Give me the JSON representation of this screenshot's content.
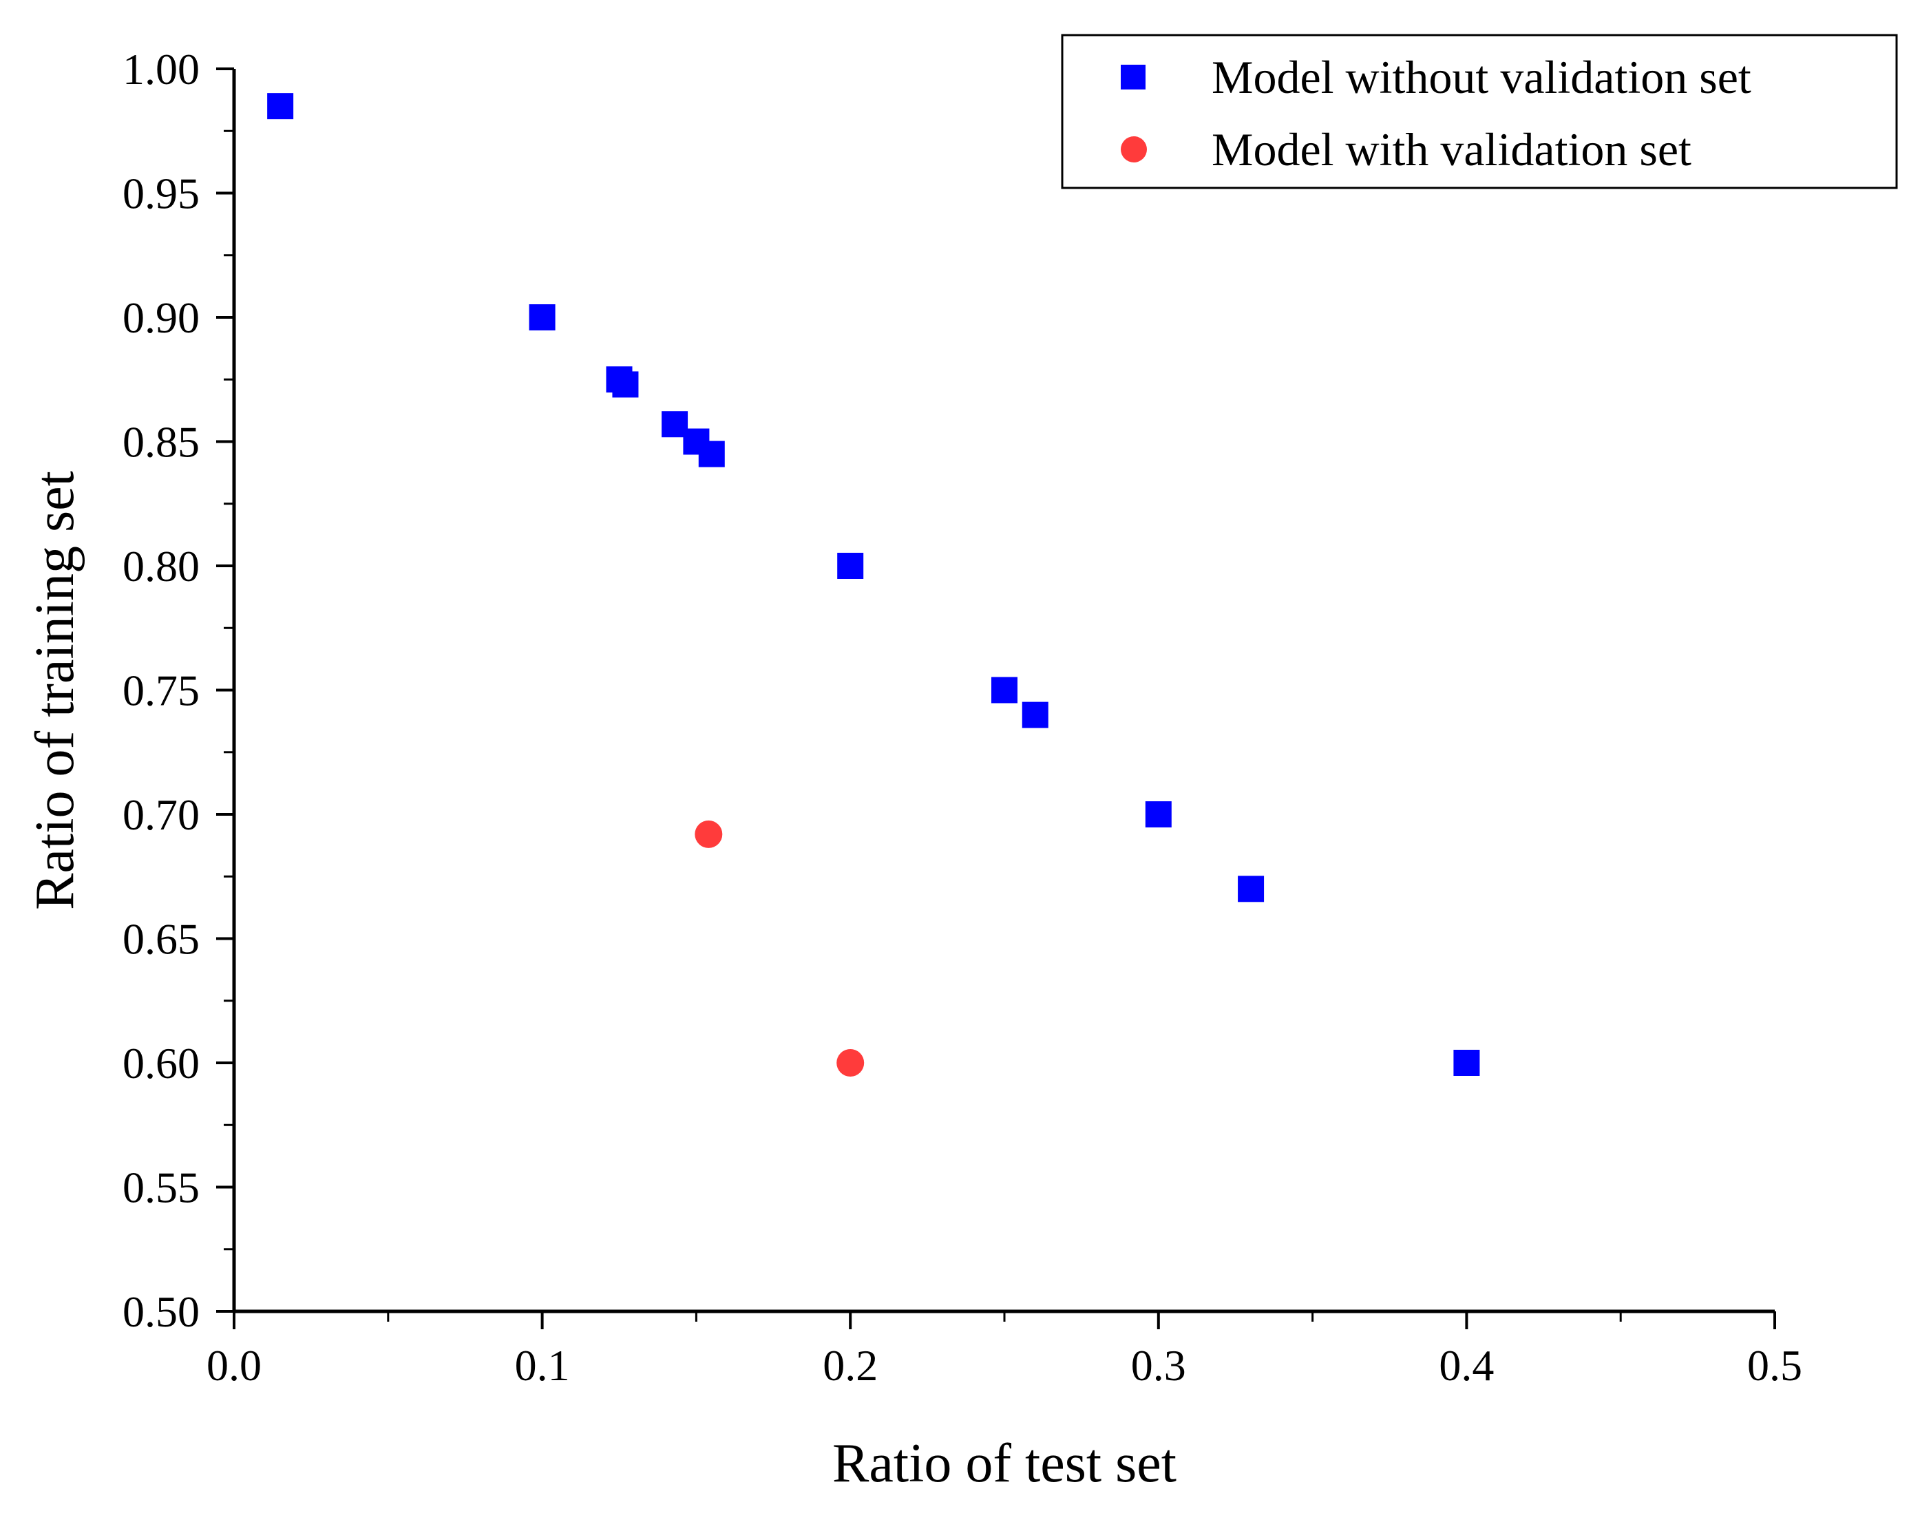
{
  "chart_data": {
    "type": "scatter",
    "title": "",
    "xlabel": "Ratio of test set",
    "ylabel": "Ratio of training set",
    "xlim": [
      0.0,
      0.5
    ],
    "ylim": [
      0.5,
      1.0
    ],
    "x_ticks": [
      0.0,
      0.1,
      0.2,
      0.3,
      0.4,
      0.5
    ],
    "x_tick_labels": [
      "0.0",
      "0.1",
      "0.2",
      "0.3",
      "0.4",
      "0.5"
    ],
    "y_ticks": [
      0.5,
      0.55,
      0.6,
      0.65,
      0.7,
      0.75,
      0.8,
      0.85,
      0.9,
      0.95,
      1.0
    ],
    "y_tick_labels": [
      "0.50",
      "0.55",
      "0.60",
      "0.65",
      "0.70",
      "0.75",
      "0.80",
      "0.85",
      "0.90",
      "0.95",
      "1.00"
    ],
    "x_minor_step": 0.05,
    "y_minor_step": 0.025,
    "grid": false,
    "legend_position": "top-right",
    "series": [
      {
        "name": "Model without validation set",
        "marker": "square",
        "color": "#0000FF",
        "x": [
          0.015,
          0.1,
          0.125,
          0.127,
          0.143,
          0.15,
          0.155,
          0.2,
          0.25,
          0.26,
          0.3,
          0.33,
          0.4
        ],
        "y": [
          0.985,
          0.9,
          0.875,
          0.873,
          0.857,
          0.85,
          0.845,
          0.8,
          0.75,
          0.74,
          0.7,
          0.67,
          0.6
        ]
      },
      {
        "name": "Model with validation set",
        "marker": "circle",
        "color": "#FF3B3B",
        "x": [
          0.154,
          0.2
        ],
        "y": [
          0.692,
          0.6
        ]
      }
    ]
  }
}
